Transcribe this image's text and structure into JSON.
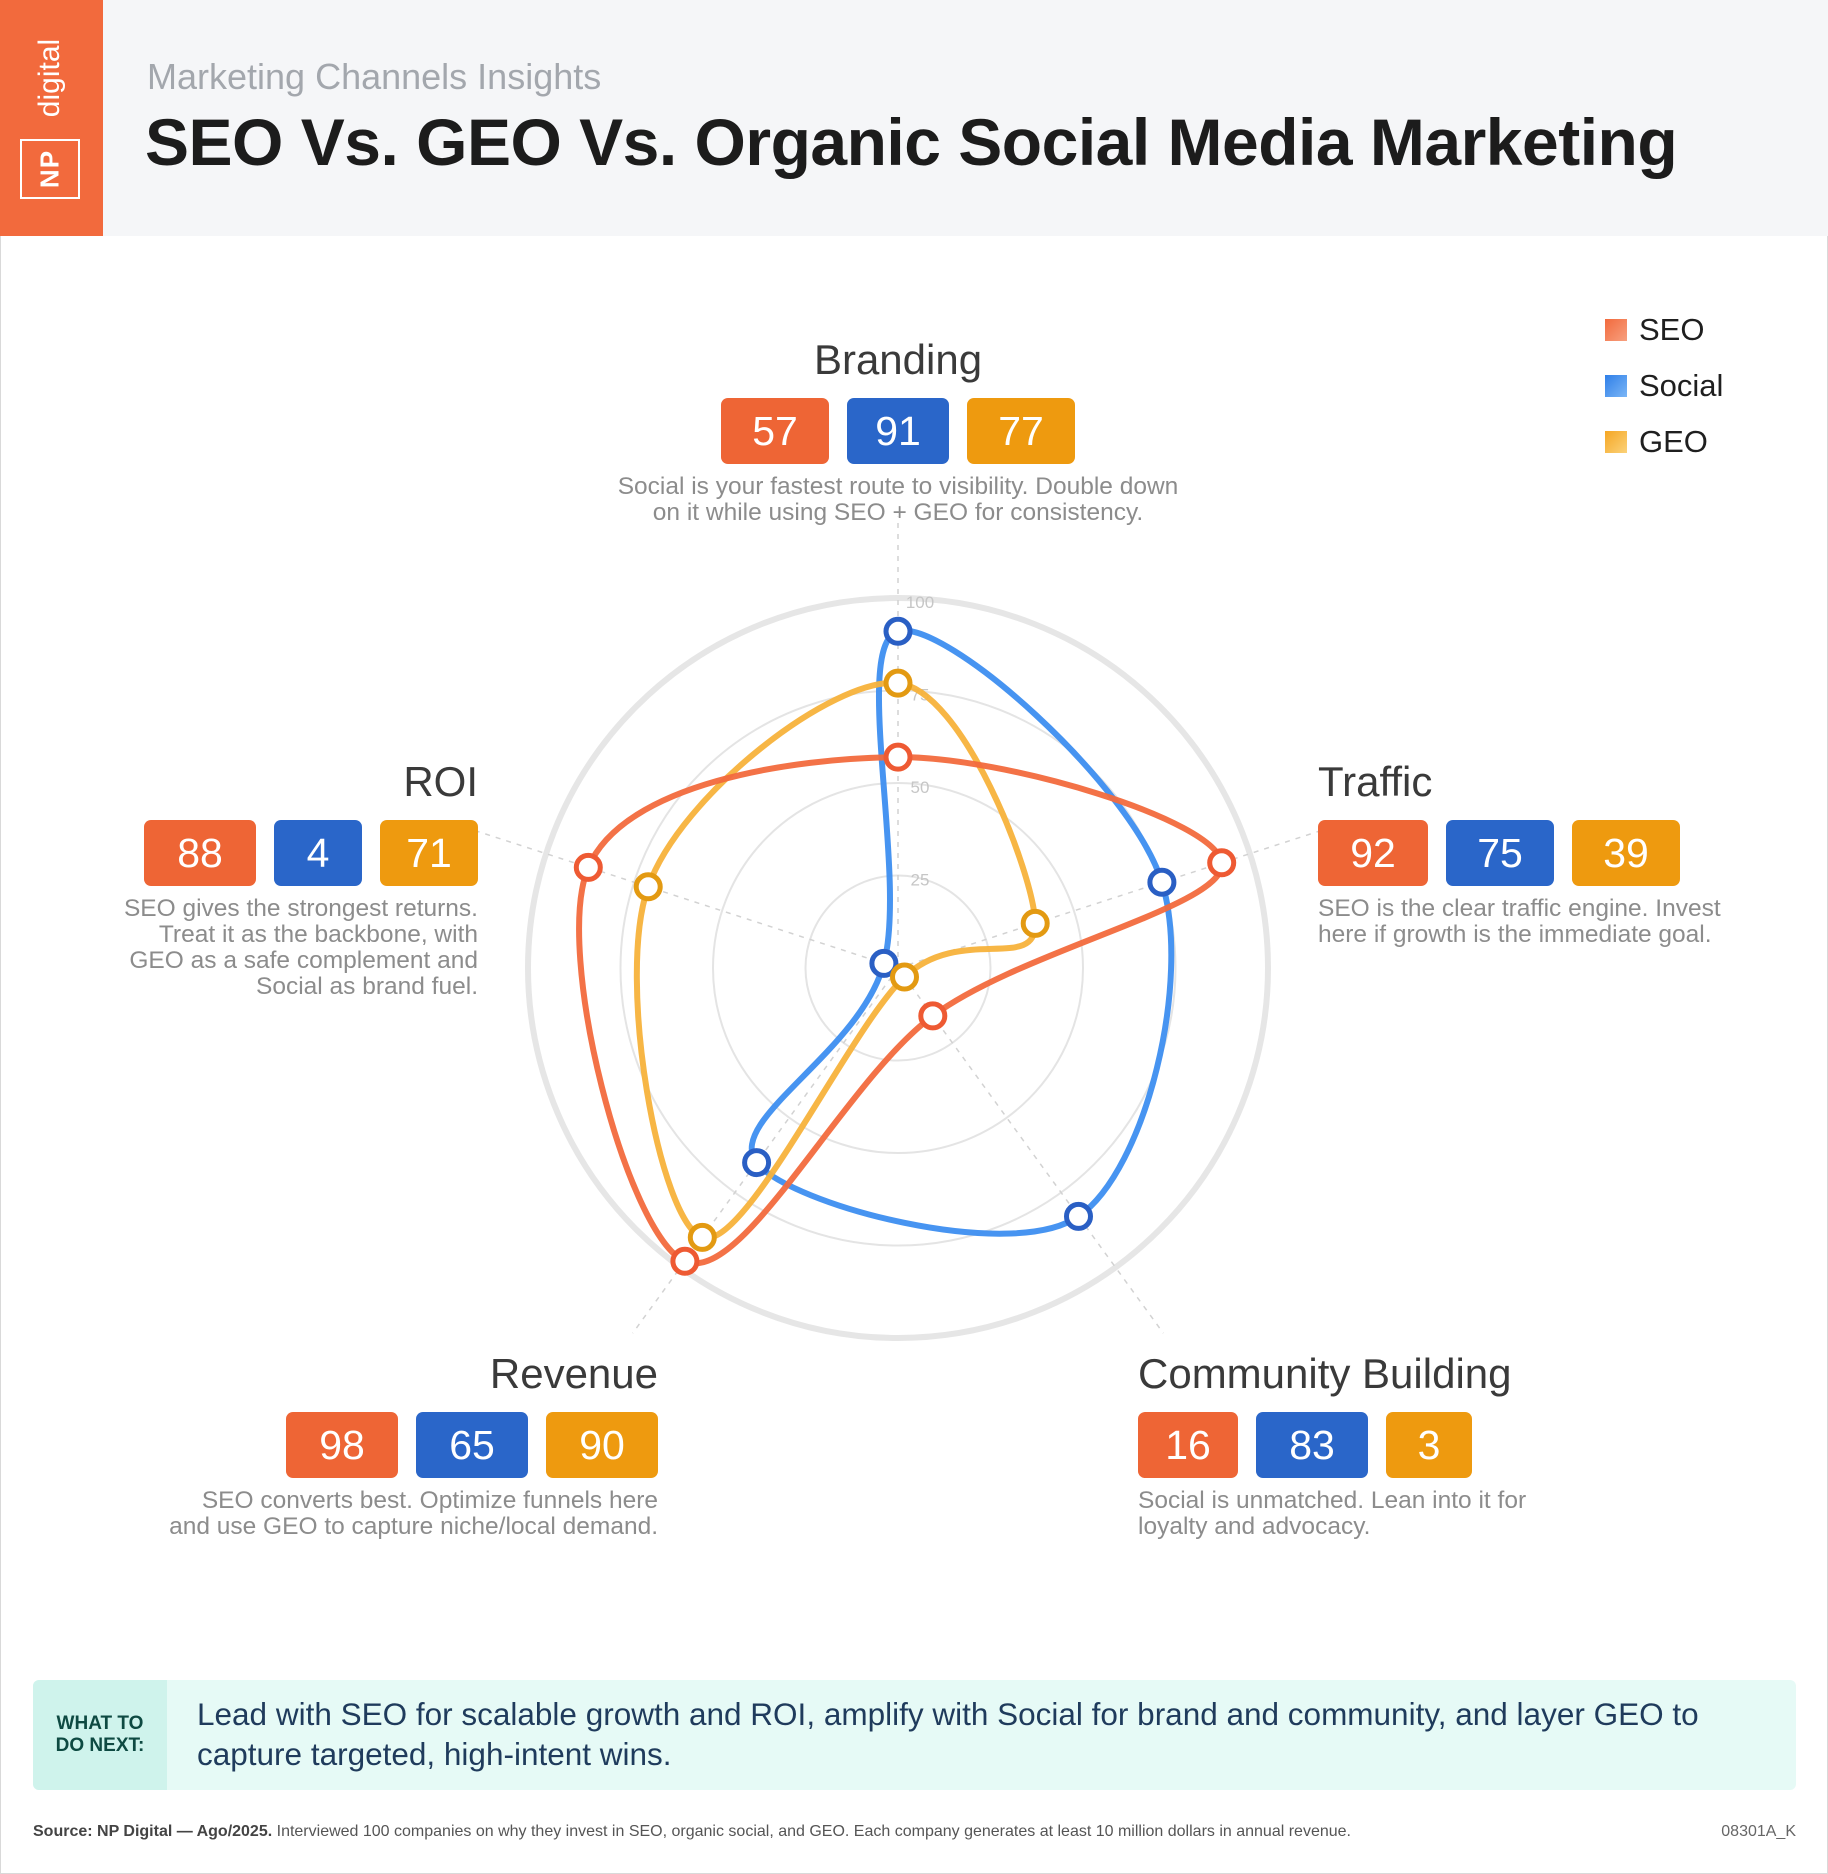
{
  "header": {
    "subtitle": "Marketing Channels Insights",
    "title": "SEO Vs. GEO Vs. Organic Social Media Marketing",
    "logo_np": "NP",
    "logo_digital": "digital"
  },
  "legend": [
    {
      "name": "SEO",
      "color": "#f26a3d"
    },
    {
      "name": "Social",
      "color": "#3d8ef0"
    },
    {
      "name": "GEO",
      "color": "#f7b23b"
    }
  ],
  "chart_data": {
    "type": "radar",
    "categories": [
      "Branding",
      "Traffic",
      "Community Building",
      "Revenue",
      "ROI"
    ],
    "series": [
      {
        "name": "SEO",
        "values": [
          57,
          92,
          16,
          98,
          88
        ],
        "color": "#f26a3d",
        "badge_color": "#ee6535"
      },
      {
        "name": "Social",
        "values": [
          91,
          75,
          83,
          65,
          4
        ],
        "color": "#3d8ef0",
        "badge_color": "#2a66c9"
      },
      {
        "name": "GEO",
        "values": [
          77,
          39,
          3,
          90,
          71
        ],
        "color": "#f7b23b",
        "badge_color": "#ee9a0f"
      }
    ],
    "rlim": [
      0,
      100
    ],
    "r_ticks": [
      25,
      50,
      75,
      100
    ],
    "grid": true,
    "legend_position": "top-right"
  },
  "categories": [
    {
      "title": "Branding",
      "desc": "Social is your fastest route to visibility. Double down\non it while using SEO + GEO for consistency."
    },
    {
      "title": "Traffic",
      "desc": "SEO is the clear traffic engine. Invest\nhere if growth is the immediate goal."
    },
    {
      "title": "Community Building",
      "desc": "Social is unmatched. Lean into it for\nloyalty and advocacy."
    },
    {
      "title": "Revenue",
      "desc": "SEO converts best. Optimize funnels here\nand use GEO to capture niche/local demand."
    },
    {
      "title": "ROI",
      "desc": "SEO gives the strongest returns.\nTreat it as the backbone, with\nGEO as a safe complement and\nSocial as brand fuel."
    }
  ],
  "next": {
    "label": "WHAT TO\nDO NEXT:",
    "text": "Lead with SEO for scalable growth and ROI, amplify with Social for brand and community, and layer GEO to capture targeted, high-intent wins."
  },
  "footer": {
    "source_label": "Source: NP Digital — Ago/2025.",
    "source_text": " Interviewed 100 companies on why they invest in SEO, organic social, and GEO. Each company generates at least 10 million dollars in annual revenue.",
    "code": "08301A_K"
  }
}
